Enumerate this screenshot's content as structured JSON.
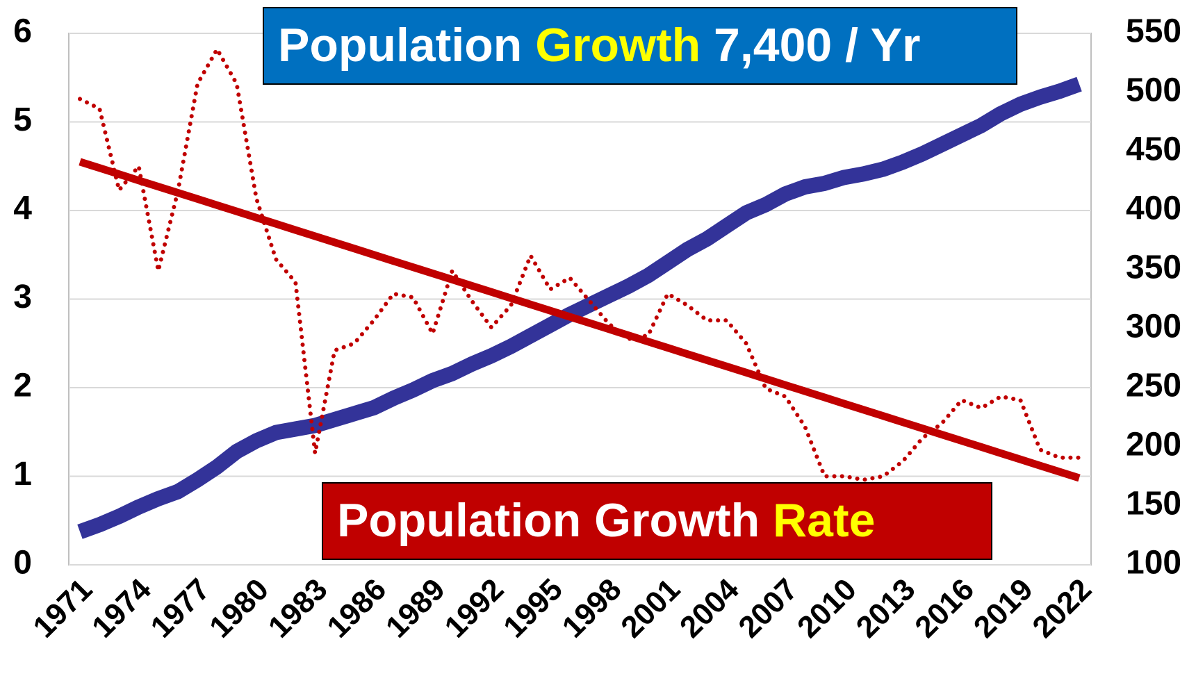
{
  "chart_data": {
    "type": "line",
    "categories": [
      "1971",
      null,
      null,
      "1974",
      null,
      null,
      "1977",
      null,
      null,
      "1980",
      null,
      null,
      "1983",
      null,
      null,
      "1986",
      null,
      null,
      "1989",
      null,
      null,
      "1992",
      null,
      null,
      "1995",
      null,
      null,
      "1998",
      null,
      null,
      "2001",
      null,
      null,
      "2004",
      null,
      null,
      "2007",
      null,
      null,
      "2010",
      null,
      null,
      "2013",
      null,
      null,
      "2016",
      null,
      null,
      "2019",
      null,
      null,
      "2022"
    ],
    "series": [
      {
        "color": "#c00000",
        "style": "dotted",
        "axis": "y",
        "values": [
          5.26,
          5.15,
          4.23,
          4.5,
          3.32,
          4.22,
          5.43,
          5.82,
          5.43,
          4.14,
          3.45,
          3.19,
          1.26,
          2.42,
          2.5,
          2.76,
          3.06,
          3.02,
          2.61,
          3.32,
          2.98,
          2.68,
          2.93,
          3.49,
          3.11,
          3.24,
          2.98,
          2.72,
          2.55,
          2.59,
          3.06,
          2.93,
          2.76,
          2.76,
          2.5,
          1.99,
          1.9,
          1.56,
          1.0,
          1.0,
          0.96,
          1.0,
          1.17,
          1.43,
          1.6,
          1.86,
          1.77,
          1.9,
          1.86,
          1.3,
          1.21,
          1.21
        ]
      },
      {
        "color": "#c00000",
        "style": "solid",
        "axis": "y",
        "values": [
          4.55,
          4.48,
          4.41,
          4.34,
          4.27,
          4.2,
          4.13,
          4.06,
          3.99,
          3.92,
          3.85,
          3.78,
          3.71,
          3.64,
          3.57,
          3.5,
          3.43,
          3.36,
          3.29,
          3.22,
          3.15,
          3.08,
          3.01,
          2.94,
          2.87,
          2.8,
          2.73,
          2.66,
          2.59,
          2.52,
          2.45,
          2.38,
          2.31,
          2.24,
          2.17,
          2.1,
          2.03,
          1.96,
          1.89,
          1.82,
          1.75,
          1.68,
          1.61,
          1.54,
          1.47,
          1.4,
          1.33,
          1.26,
          1.19,
          1.12,
          1.05,
          0.98
        ]
      },
      {
        "color": "#333399",
        "style": "thick",
        "axis": "y2",
        "values": [
          128,
          134,
          141,
          149,
          156,
          162,
          172,
          183,
          196,
          205,
          212,
          215,
          218,
          223,
          228,
          233,
          241,
          248,
          256,
          262,
          270,
          277,
          285,
          294,
          303,
          312,
          320,
          328,
          336,
          345,
          356,
          367,
          376,
          387,
          398,
          405,
          414,
          420,
          423,
          428,
          431,
          435,
          441,
          448,
          456,
          464,
          472,
          482,
          490,
          496,
          501,
          507
        ]
      }
    ],
    "ylim": [
      0,
      6
    ],
    "yticks": [
      0,
      1,
      2,
      3,
      4,
      5,
      6
    ],
    "y2lim": [
      100,
      550
    ],
    "y2ticks": [
      100,
      150,
      200,
      250,
      300,
      350,
      400,
      450,
      500,
      550
    ],
    "grid": true,
    "annotations": [
      {
        "parts": [
          "Population ",
          "Growth",
          " 7,400 / Yr"
        ],
        "colors": [
          "#ffffff",
          "#ffff00",
          "#ffffff"
        ],
        "box": "#0070c0"
      },
      {
        "parts": [
          "Population Growth ",
          "Rate"
        ],
        "colors": [
          "#ffffff",
          "#ffff00"
        ],
        "box": "#c00000"
      }
    ]
  }
}
